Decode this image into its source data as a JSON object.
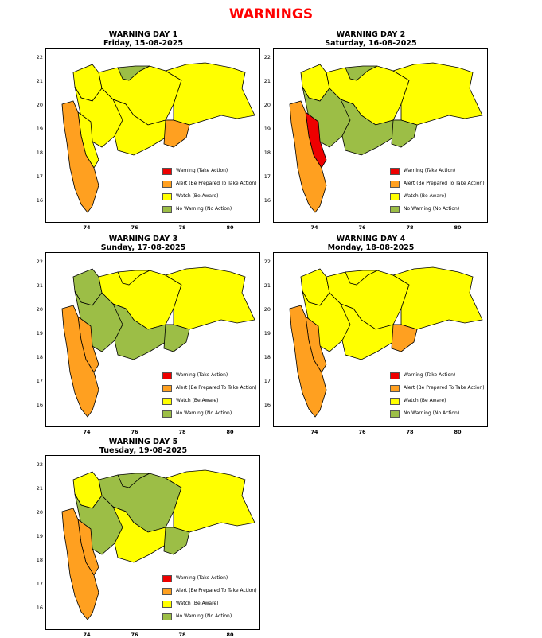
{
  "title": "WARNINGS",
  "colors": {
    "warning": "#ee0000",
    "alert": "#ffa020",
    "watch": "#ffff00",
    "no_warning": "#9cbe46",
    "outline": "#000000"
  },
  "legend": [
    {
      "key": "warning",
      "label": "Warning (Take Action)"
    },
    {
      "key": "alert",
      "label": "Alert (Be Prepared To Take Action)"
    },
    {
      "key": "watch",
      "label": "Watch (Be Aware)"
    },
    {
      "key": "no_warning",
      "label": "No Warning (No Action)"
    }
  ],
  "axes": {
    "y_ticks": [
      "22",
      "21",
      "20",
      "19",
      "18",
      "17",
      "16"
    ],
    "x_ticks": [
      "74",
      "76",
      "78",
      "80"
    ]
  },
  "panels": [
    {
      "heading": "WARNING DAY 1",
      "date": "Friday, 15-08-2025",
      "zones": {
        "konkan": "alert",
        "ghats": "watch",
        "madhya": "watch",
        "marathwada": "watch",
        "vidarbha_w": "watch",
        "vidarbha_e": "watch",
        "nw": "watch",
        "green_belt": "no_warning",
        "east_marathwada": "alert"
      }
    },
    {
      "heading": "WARNING DAY 2",
      "date": "Saturday, 16-08-2025",
      "zones": {
        "konkan": "alert",
        "ghats": "warning",
        "madhya": "no_warning",
        "marathwada": "no_warning",
        "vidarbha_w": "watch",
        "vidarbha_e": "watch",
        "nw": "watch",
        "green_belt": "no_warning",
        "east_marathwada": "no_warning"
      }
    },
    {
      "heading": "WARNING DAY 3",
      "date": "Sunday, 17-08-2025",
      "zones": {
        "konkan": "alert",
        "ghats": "alert",
        "madhya": "no_warning",
        "marathwada": "no_warning",
        "vidarbha_w": "watch",
        "vidarbha_e": "watch",
        "nw": "no_warning",
        "green_belt": "watch",
        "east_marathwada": "no_warning"
      }
    },
    {
      "heading": "WARNING DAY 4",
      "date": "Monday, 18-08-2025",
      "zones": {
        "konkan": "alert",
        "ghats": "alert",
        "madhya": "watch",
        "marathwada": "watch",
        "vidarbha_w": "watch",
        "vidarbha_e": "watch",
        "nw": "watch",
        "green_belt": "watch",
        "east_marathwada": "alert"
      }
    },
    {
      "heading": "WARNING DAY 5",
      "date": "Tuesday, 19-08-2025",
      "zones": {
        "konkan": "alert",
        "ghats": "alert",
        "madhya": "no_warning",
        "marathwada": "watch",
        "vidarbha_w": "no_warning",
        "vidarbha_e": "watch",
        "nw": "watch",
        "green_belt": "no_warning",
        "east_marathwada": "no_warning"
      }
    }
  ]
}
